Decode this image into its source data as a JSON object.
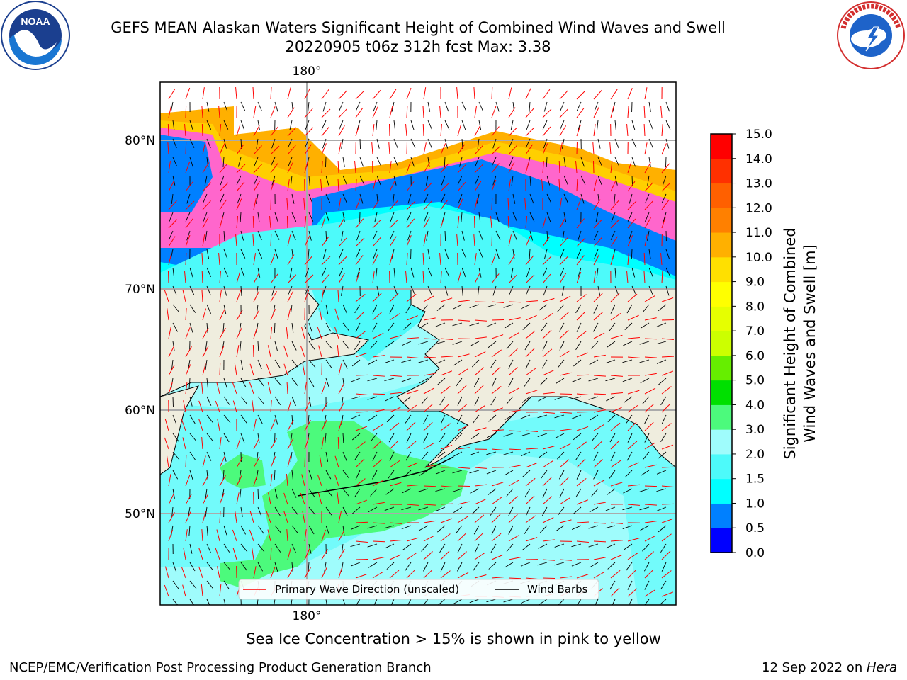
{
  "header": {
    "title_line1": "GEFS MEAN Alaskan Waters Significant Height of Combined Wind Waves and Swell",
    "title_line2": "20220905 t06z 312h fcst   Max: 3.38"
  },
  "logos": {
    "left": {
      "icon": "noaa-logo-icon",
      "text": "NOAA"
    },
    "right": {
      "icon": "nws-logo-icon"
    }
  },
  "map": {
    "lon_label_top": "180°",
    "lon_label_bottom": "180°",
    "lat_labels": [
      "80°N",
      "70°N",
      "60°N",
      "50°N"
    ],
    "legend": {
      "wave_direction": "Primary Wave Direction (unscaled)",
      "wind_barbs": "Wind Barbs"
    },
    "colors": {
      "land": "#efedde",
      "wave_low": "#9ffcfc",
      "wave_mid": "#4dfafa",
      "wave_high": "#4cfa7c",
      "ice_pink": "#ff66cc",
      "ice_orange": "#ffb000",
      "ice_yellow": "#ffea00",
      "deep_blue": "#0080ff",
      "arrow": "#ff0000",
      "barb": "#000000"
    }
  },
  "colorbar": {
    "label_line1": "Significant Height of Combined",
    "label_line2": "Wind Waves and Swell [m]",
    "ticks": [
      "0.0",
      "0.5",
      "1.0",
      "1.5",
      "2.0",
      "3.0",
      "4.0",
      "5.0",
      "6.0",
      "7.0",
      "8.0",
      "9.0",
      "10.0",
      "11.0",
      "12.0",
      "13.0",
      "14.0",
      "15.0"
    ],
    "colors": [
      "#0000ff",
      "#0080ff",
      "#00ffff",
      "#4dfafa",
      "#9ffcfc",
      "#4cfa7c",
      "#00e000",
      "#66ee00",
      "#ccff00",
      "#e6ff00",
      "#ffff00",
      "#ffe000",
      "#ffb000",
      "#ff8000",
      "#ff6000",
      "#ff3000",
      "#ff0000"
    ]
  },
  "note": "Sea Ice Concentration > 15% is shown in pink to yellow",
  "footer": {
    "left": "NCEP/EMC/Verification Post Processing Product Generation Branch",
    "right_prefix": "12 Sep 2022 on ",
    "right_host": "Hera"
  }
}
